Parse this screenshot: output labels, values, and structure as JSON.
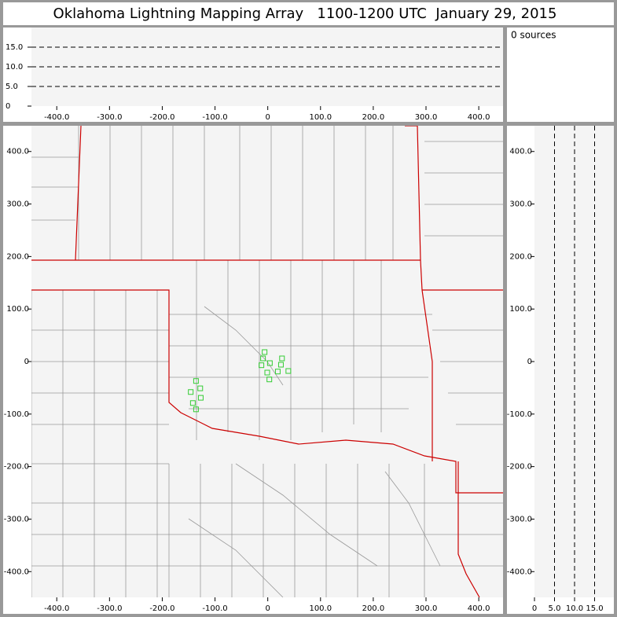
{
  "header": {
    "title": "Oklahoma Lightning Mapping Array   1100-1200 UTC  January 29, 2015"
  },
  "status": {
    "sources": "0 sources"
  },
  "chart_data": [
    {
      "type": "time-height",
      "xlim": [
        -448,
        446
      ],
      "ylim": [
        0,
        20
      ],
      "xticks": [
        {
          "value": -400,
          "label": "-400.0"
        },
        {
          "value": -300,
          "label": "-300.0"
        },
        {
          "value": -200,
          "label": "-200.0"
        },
        {
          "value": -100,
          "label": "-100.0"
        },
        0,
        {
          "value": 100,
          "label": "100.0"
        },
        {
          "value": 200,
          "label": "200.0"
        },
        {
          "value": 300,
          "label": "300.0"
        },
        {
          "value": 400,
          "label": "400.0"
        }
      ],
      "yticks": [
        0,
        {
          "value": 5,
          "label": "5.0"
        },
        {
          "value": 10,
          "label": "10.0"
        },
        {
          "value": 15,
          "label": "15.0"
        }
      ],
      "grid": true
    },
    {
      "type": "plan",
      "xlim": [
        -448,
        446
      ],
      "ylim": [
        -449,
        449
      ],
      "xticks": [
        {
          "value": -400,
          "label": "-400.0"
        },
        {
          "value": -300,
          "label": "-300.0"
        },
        {
          "value": -200,
          "label": "-200.0"
        },
        {
          "value": -100,
          "label": "-100.0"
        },
        0,
        {
          "value": 100,
          "label": "100.0"
        },
        {
          "value": 200,
          "label": "200.0"
        },
        {
          "value": 300,
          "label": "300.0"
        },
        {
          "value": 400,
          "label": "400.0"
        }
      ],
      "yticks": [
        {
          "value": -400,
          "label": "-400.0"
        },
        {
          "value": -300,
          "label": "-300.0"
        },
        {
          "value": -200,
          "label": "-200.0"
        },
        {
          "value": -100,
          "label": "-100.0"
        },
        0,
        {
          "value": 100,
          "label": "100.0"
        },
        {
          "value": 200,
          "label": "200.0"
        },
        {
          "value": 300,
          "label": "300.0"
        },
        {
          "value": 400,
          "label": "400.0"
        }
      ],
      "color": "#33cc33",
      "x": [
        -6,
        -9,
        -12,
        4,
        27,
        25,
        19,
        39,
        -1,
        3,
        -136,
        -128,
        -146,
        -127,
        -142,
        -136
      ],
      "y": [
        18,
        6,
        -7,
        -3,
        6,
        -6,
        -19,
        -18,
        -21,
        -34,
        -37,
        -51,
        -58,
        -69,
        -79,
        -91
      ]
    },
    {
      "type": "height-ns",
      "xlim": [
        0,
        20
      ],
      "ylim": [
        -449,
        449
      ],
      "xticks": [
        0,
        {
          "value": 5,
          "label": "5.0"
        },
        {
          "value": 10,
          "label": "10.0"
        },
        {
          "value": 15,
          "label": "15.0"
        }
      ],
      "yticks": [
        {
          "value": -400,
          "label": "-400.0"
        },
        {
          "value": -300,
          "label": "-300.0"
        },
        {
          "value": -200,
          "label": "-200.0"
        },
        {
          "value": -100,
          "label": "-100.0"
        },
        0,
        {
          "value": 100,
          "label": "100.0"
        },
        {
          "value": 200,
          "label": "200.0"
        },
        {
          "value": 300,
          "label": "300.0"
        },
        {
          "value": 400,
          "label": "400.0"
        }
      ],
      "grid": true
    }
  ]
}
